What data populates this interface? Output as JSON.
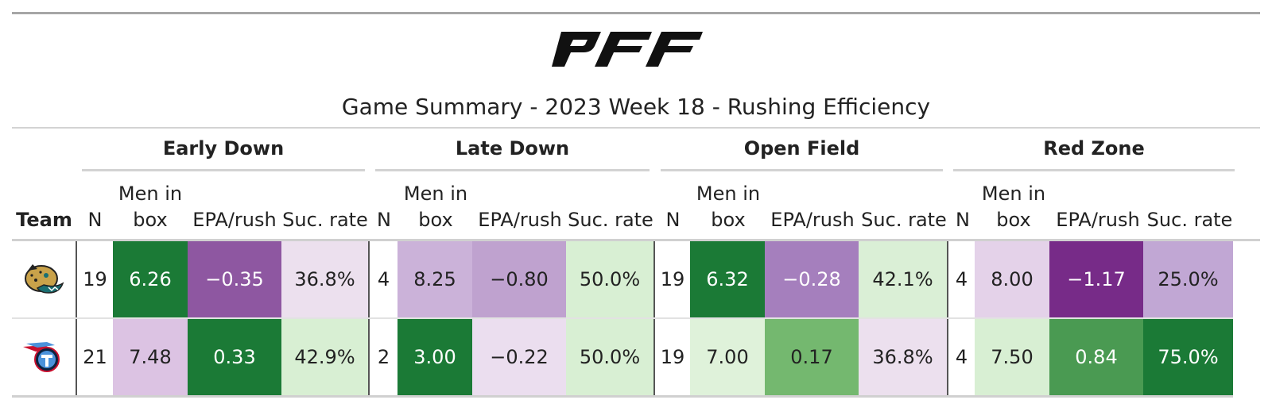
{
  "brand": {
    "logo_text": "PFF"
  },
  "title": "Game Summary - 2023 Week 18 - Rushing Efficiency",
  "groups": [
    "Early Down",
    "Late Down",
    "Open Field",
    "Red Zone"
  ],
  "columns": {
    "team": "Team",
    "n": "N",
    "men_in_box_line1": "Men in",
    "men_in_box_line2": "box",
    "epa": "EPA/rush",
    "suc": "Suc. rate"
  },
  "rows": [
    {
      "team_icon": "jaguars-logo-icon",
      "cells": [
        {
          "v": "19",
          "bg": "#ffffff",
          "fg": "#222222"
        },
        {
          "v": "6.26",
          "bg": "#1b7a36",
          "fg": "#ffffff"
        },
        {
          "v": "−0.35",
          "bg": "#8e57a1",
          "fg": "#ffffff"
        },
        {
          "v": "36.8%",
          "bg": "#ece0ee",
          "fg": "#222222"
        },
        {
          "v": "4",
          "bg": "#ffffff",
          "fg": "#222222"
        },
        {
          "v": "8.25",
          "bg": "#cbb2d9",
          "fg": "#222222"
        },
        {
          "v": "−0.80",
          "bg": "#bfa2cf",
          "fg": "#222222"
        },
        {
          "v": "50.0%",
          "bg": "#d8efd3",
          "fg": "#222222"
        },
        {
          "v": "19",
          "bg": "#ffffff",
          "fg": "#222222"
        },
        {
          "v": "6.32",
          "bg": "#1b7a36",
          "fg": "#ffffff"
        },
        {
          "v": "−0.28",
          "bg": "#a57fbd",
          "fg": "#ffffff"
        },
        {
          "v": "42.1%",
          "bg": "#daefd6",
          "fg": "#222222"
        },
        {
          "v": "4",
          "bg": "#ffffff",
          "fg": "#222222"
        },
        {
          "v": "8.00",
          "bg": "#e4d2e9",
          "fg": "#222222"
        },
        {
          "v": "−1.17",
          "bg": "#772b88",
          "fg": "#ffffff"
        },
        {
          "v": "25.0%",
          "bg": "#c1a7d4",
          "fg": "#222222"
        }
      ]
    },
    {
      "team_icon": "titans-logo-icon",
      "cells": [
        {
          "v": "21",
          "bg": "#ffffff",
          "fg": "#222222"
        },
        {
          "v": "7.48",
          "bg": "#dcc3e3",
          "fg": "#222222"
        },
        {
          "v": "0.33",
          "bg": "#1b7a36",
          "fg": "#ffffff"
        },
        {
          "v": "42.9%",
          "bg": "#d8efd3",
          "fg": "#222222"
        },
        {
          "v": "2",
          "bg": "#ffffff",
          "fg": "#222222"
        },
        {
          "v": "3.00",
          "bg": "#1b7a36",
          "fg": "#ffffff"
        },
        {
          "v": "−0.22",
          "bg": "#ebdeef",
          "fg": "#222222"
        },
        {
          "v": "50.0%",
          "bg": "#d8efd3",
          "fg": "#222222"
        },
        {
          "v": "19",
          "bg": "#ffffff",
          "fg": "#222222"
        },
        {
          "v": "7.00",
          "bg": "#dff2da",
          "fg": "#222222"
        },
        {
          "v": "0.17",
          "bg": "#74b86f",
          "fg": "#222222"
        },
        {
          "v": "36.8%",
          "bg": "#ece0ee",
          "fg": "#222222"
        },
        {
          "v": "4",
          "bg": "#ffffff",
          "fg": "#222222"
        },
        {
          "v": "7.50",
          "bg": "#d8efd3",
          "fg": "#222222"
        },
        {
          "v": "0.84",
          "bg": "#4a9a52",
          "fg": "#ffffff"
        },
        {
          "v": "75.0%",
          "bg": "#1b7a36",
          "fg": "#ffffff"
        }
      ]
    }
  ]
}
